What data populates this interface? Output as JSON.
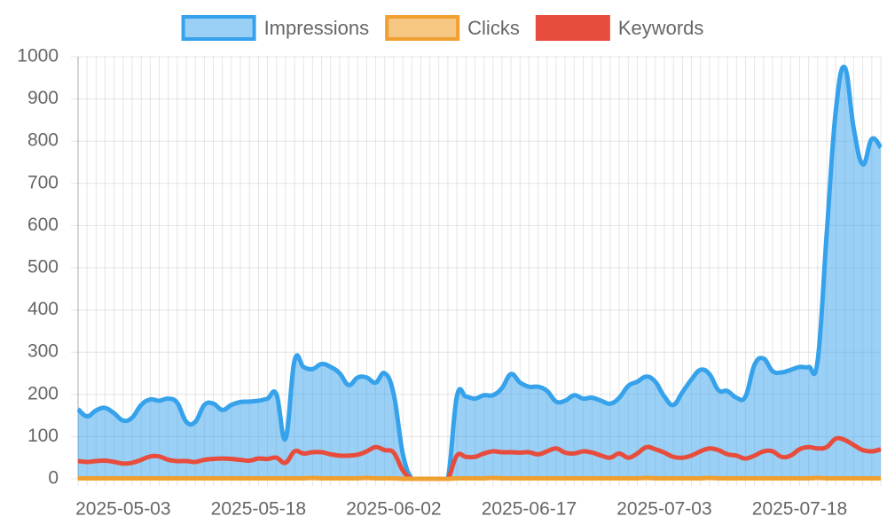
{
  "chart_data": {
    "type": "line",
    "categories": [
      null,
      null,
      null,
      null,
      null,
      "2025-05-03",
      null,
      null,
      null,
      null,
      null,
      null,
      null,
      null,
      null,
      null,
      null,
      null,
      null,
      null,
      "2025-05-18",
      null,
      null,
      null,
      null,
      null,
      null,
      null,
      null,
      null,
      null,
      null,
      null,
      null,
      null,
      "2025-06-02",
      null,
      null,
      null,
      null,
      null,
      null,
      null,
      null,
      null,
      null,
      null,
      null,
      null,
      null,
      "2025-06-17",
      null,
      null,
      null,
      null,
      null,
      null,
      null,
      null,
      null,
      null,
      null,
      null,
      null,
      null,
      "2025-07-03",
      null,
      null,
      null,
      null,
      null,
      null,
      null,
      null,
      null,
      null,
      null,
      null,
      null,
      null,
      "2025-07-18",
      null,
      null,
      null,
      null,
      null,
      null,
      null,
      null,
      null
    ],
    "series": [
      {
        "name": "Impressions",
        "color": "#36a2eb",
        "fill": "rgba(54,162,235,0.5)",
        "values": [
          165,
          148,
          162,
          168,
          155,
          138,
          145,
          175,
          188,
          185,
          190,
          180,
          135,
          135,
          175,
          178,
          163,
          175,
          182,
          183,
          185,
          190,
          200,
          95,
          280,
          265,
          260,
          272,
          265,
          250,
          222,
          240,
          240,
          228,
          250,
          200,
          60,
          0,
          0,
          0,
          0,
          0,
          195,
          195,
          190,
          198,
          198,
          215,
          248,
          228,
          218,
          218,
          208,
          183,
          185,
          198,
          190,
          192,
          185,
          178,
          192,
          220,
          230,
          242,
          230,
          195,
          175,
          205,
          235,
          258,
          248,
          210,
          208,
          192,
          195,
          270,
          285,
          255,
          252,
          258,
          265,
          265,
          280,
          580,
          870,
          975,
          830,
          745,
          805,
          785
        ]
      },
      {
        "name": "Clicks",
        "color": "#f0a030",
        "fill": "rgba(240,160,48,0.6)",
        "values": [
          1,
          1,
          1,
          1,
          1,
          1,
          1,
          1,
          1,
          1,
          1,
          1,
          1,
          1,
          1,
          1,
          1,
          1,
          1,
          1,
          1,
          1,
          1,
          1,
          1,
          1,
          2,
          1,
          1,
          1,
          1,
          1,
          2,
          1,
          1,
          1,
          0,
          0,
          0,
          0,
          0,
          0,
          1,
          1,
          1,
          1,
          2,
          1,
          1,
          1,
          1,
          1,
          1,
          1,
          1,
          1,
          1,
          1,
          1,
          1,
          1,
          1,
          1,
          2,
          1,
          1,
          1,
          1,
          1,
          1,
          2,
          1,
          1,
          1,
          1,
          1,
          1,
          1,
          1,
          1,
          1,
          1,
          2,
          1,
          1,
          1,
          1,
          1,
          1,
          1
        ]
      },
      {
        "name": "Keywords",
        "color": "#e74c3c",
        "fill": "none",
        "values": [
          42,
          40,
          42,
          43,
          40,
          36,
          38,
          45,
          53,
          53,
          45,
          42,
          42,
          40,
          45,
          47,
          48,
          47,
          45,
          43,
          48,
          47,
          50,
          38,
          65,
          60,
          63,
          63,
          58,
          55,
          55,
          57,
          65,
          75,
          68,
          62,
          20,
          0,
          0,
          0,
          0,
          0,
          55,
          52,
          52,
          60,
          65,
          63,
          63,
          62,
          63,
          58,
          65,
          72,
          62,
          60,
          65,
          62,
          55,
          50,
          60,
          50,
          60,
          75,
          70,
          62,
          52,
          50,
          55,
          65,
          72,
          68,
          58,
          55,
          48,
          55,
          65,
          65,
          52,
          55,
          70,
          75,
          72,
          75,
          95,
          92,
          80,
          68,
          65,
          70
        ]
      }
    ],
    "ylim": [
      0,
      1000
    ],
    "yticks": [
      0,
      100,
      200,
      300,
      400,
      500,
      600,
      700,
      800,
      900,
      1000
    ],
    "grid": true,
    "legend": "top"
  }
}
